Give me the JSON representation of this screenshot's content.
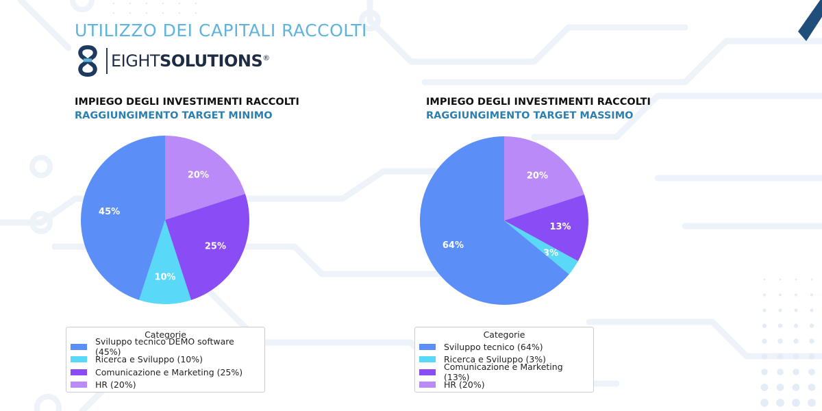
{
  "page": {
    "title": "UTILIZZO DEI CAPITALI RACCOLTI",
    "brand": {
      "light": "EIGHT",
      "bold": "SOLUTIONS",
      "registered": "®"
    }
  },
  "colors": {
    "sviluppo": "#5b8ff7",
    "ricerca": "#5ad8f7",
    "comunicazione": "#8a4df5",
    "hr": "#b98af8",
    "title_accent": "#5fb3dc",
    "subtitle": "#2d7fb0",
    "brand_dark": "#1e3a5f"
  },
  "chart_data": [
    {
      "type": "pie",
      "title": "IMPIEGO DEGLI INVESTIMENTI RACCOLTI",
      "subtitle": "RAGGIUNGIMENTO TARGET MINIMO",
      "legend_title": "Categorie",
      "legend_placement": "bottom",
      "slices": [
        {
          "label": "HR (20%)",
          "value": 20,
          "color": "#b98af8"
        },
        {
          "label": "Comunicazione e Marketing (25%)",
          "value": 25,
          "color": "#8a4df5"
        },
        {
          "label": "Ricerca e Sviluppo (10%)",
          "value": 10,
          "color": "#5ad8f7"
        },
        {
          "label": "Sviluppo tecnico DEMO software (45%)",
          "value": 45,
          "color": "#5b8ff7"
        }
      ],
      "legend_order": [
        3,
        2,
        1,
        0
      ]
    },
    {
      "type": "pie",
      "title": "IMPIEGO DEGLI INVESTIMENTI RACCOLTI",
      "subtitle": "RAGGIUNGIMENTO TARGET MASSIMO",
      "legend_title": "Categorie",
      "legend_placement": "bottom",
      "slices": [
        {
          "label": "HR (20%)",
          "value": 20,
          "color": "#b98af8"
        },
        {
          "label": "Comunicazione e Marketing (13%)",
          "value": 13,
          "color": "#8a4df5"
        },
        {
          "label": "Ricerca e Sviluppo (3%)",
          "value": 3,
          "color": "#5ad8f7"
        },
        {
          "label": "Sviluppo tecnico (64%)",
          "value": 64,
          "color": "#5b8ff7"
        }
      ],
      "legend_order": [
        3,
        2,
        1,
        0
      ]
    }
  ]
}
